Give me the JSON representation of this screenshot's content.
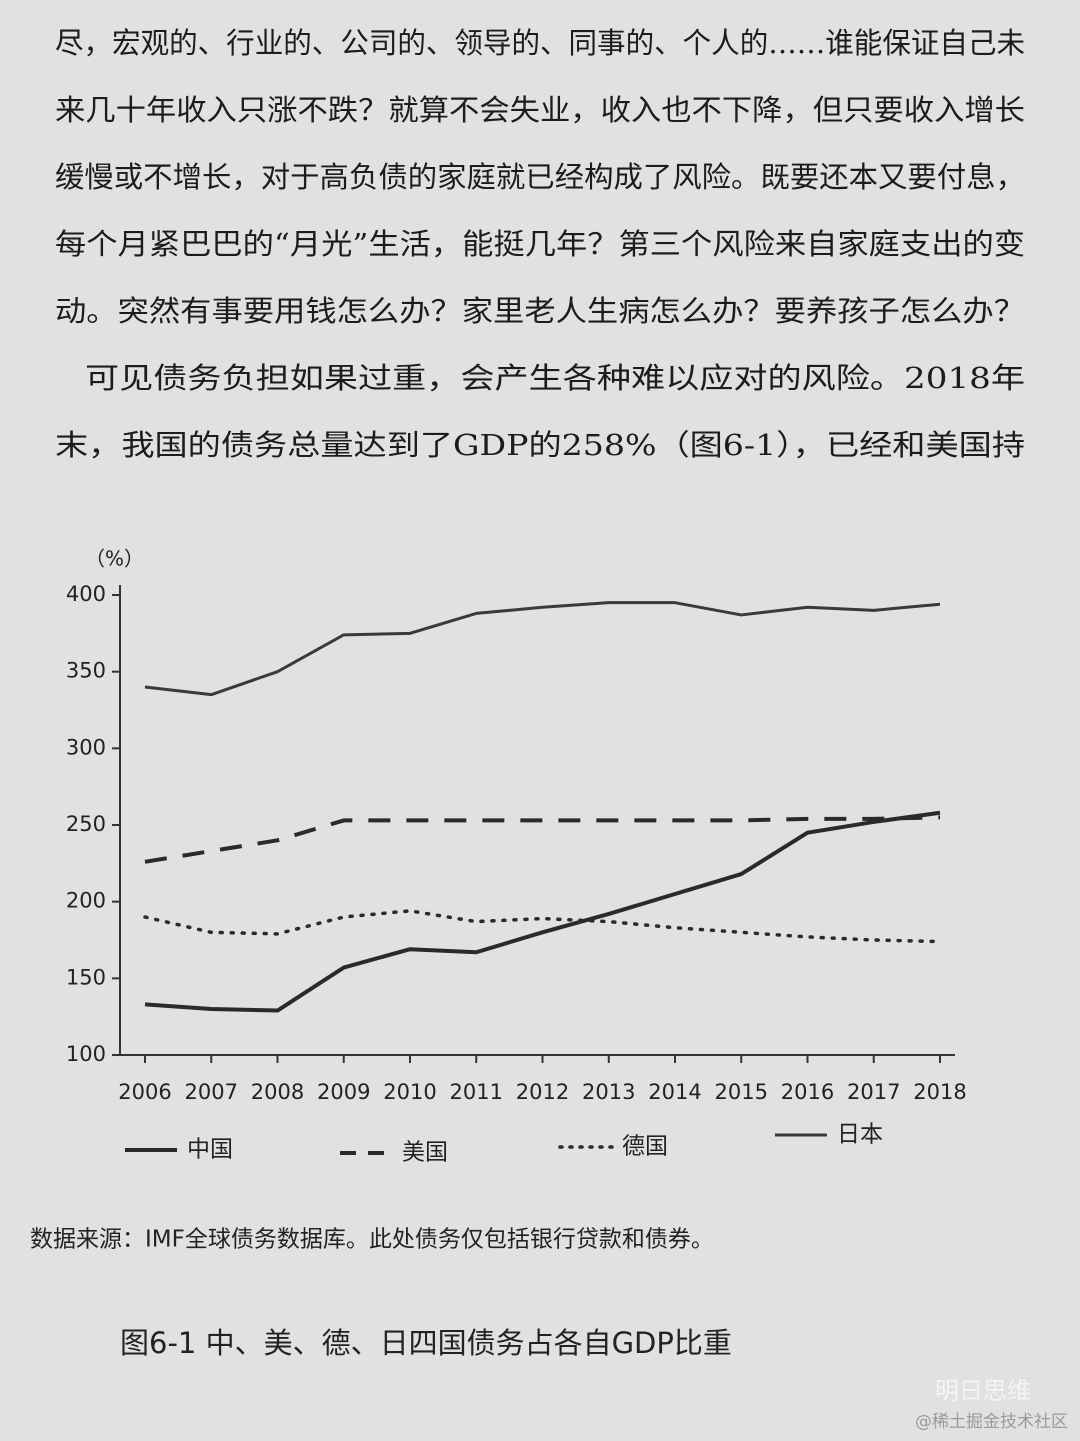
{
  "page": {
    "paragraph": [
      "尽，宏观的、行业的、公司的、领导的、同事的、个人的……谁能保证自己未",
      "来几十年收入只涨不跌？就算不会失业，收入也不下降，但只要收入增长",
      "缓慢或不增长，对于高负债的家庭就已经构成了风险。既要还本又要付息，",
      "每个月紧巴巴的“月光”生活，能挺几年？第三个风险来自家庭支出的变",
      "动。突然有事要用钱怎么办？家里老人生病怎么办？要养孩子怎么办？",
      "可见债务负担如果过重，会产生各种难以应对的风险。2018年",
      "末，我国的债务总量达到了GDP的258%（图6-1），已经和美国持"
    ],
    "source": "数据来源：IMF全球债务数据库。此处债务仅包括银行贷款和债券。",
    "caption": "图6-1 中、美、德、日四国债务占各自GDP比重",
    "watermark": "明日思维",
    "watermark_site": "@稀土掘金技术社区"
  },
  "chart_data": {
    "type": "line",
    "y_label": "（%）",
    "categories": [
      "2006",
      "2007",
      "2008",
      "2009",
      "2010",
      "2011",
      "2012",
      "2013",
      "2014",
      "2015",
      "2016",
      "2017",
      "2018"
    ],
    "series": [
      {
        "name": "中国",
        "color": "#2a2a2a",
        "style": "solid",
        "values": [
          133,
          130,
          129,
          157,
          169,
          167,
          180,
          192,
          205,
          218,
          245,
          252,
          258
        ]
      },
      {
        "name": "美国",
        "color": "#2a2a2a",
        "style": "dashed",
        "values": [
          226,
          233,
          240,
          253,
          253,
          253,
          253,
          253,
          253,
          253,
          254,
          254,
          255
        ]
      },
      {
        "name": "德国",
        "color": "#2a2a2a",
        "style": "dotted",
        "values": [
          190,
          180,
          179,
          190,
          194,
          187,
          189,
          187,
          183,
          180,
          177,
          175,
          174
        ]
      },
      {
        "name": "日本",
        "color": "#3a3a3a",
        "style": "thin",
        "values": [
          340,
          335,
          350,
          374,
          375,
          388,
          392,
          395,
          395,
          387,
          392,
          390,
          394
        ]
      }
    ],
    "ylim": [
      100,
      400
    ],
    "yticks": [
      100,
      150,
      200,
      250,
      300,
      350,
      400
    ],
    "grid": false
  }
}
